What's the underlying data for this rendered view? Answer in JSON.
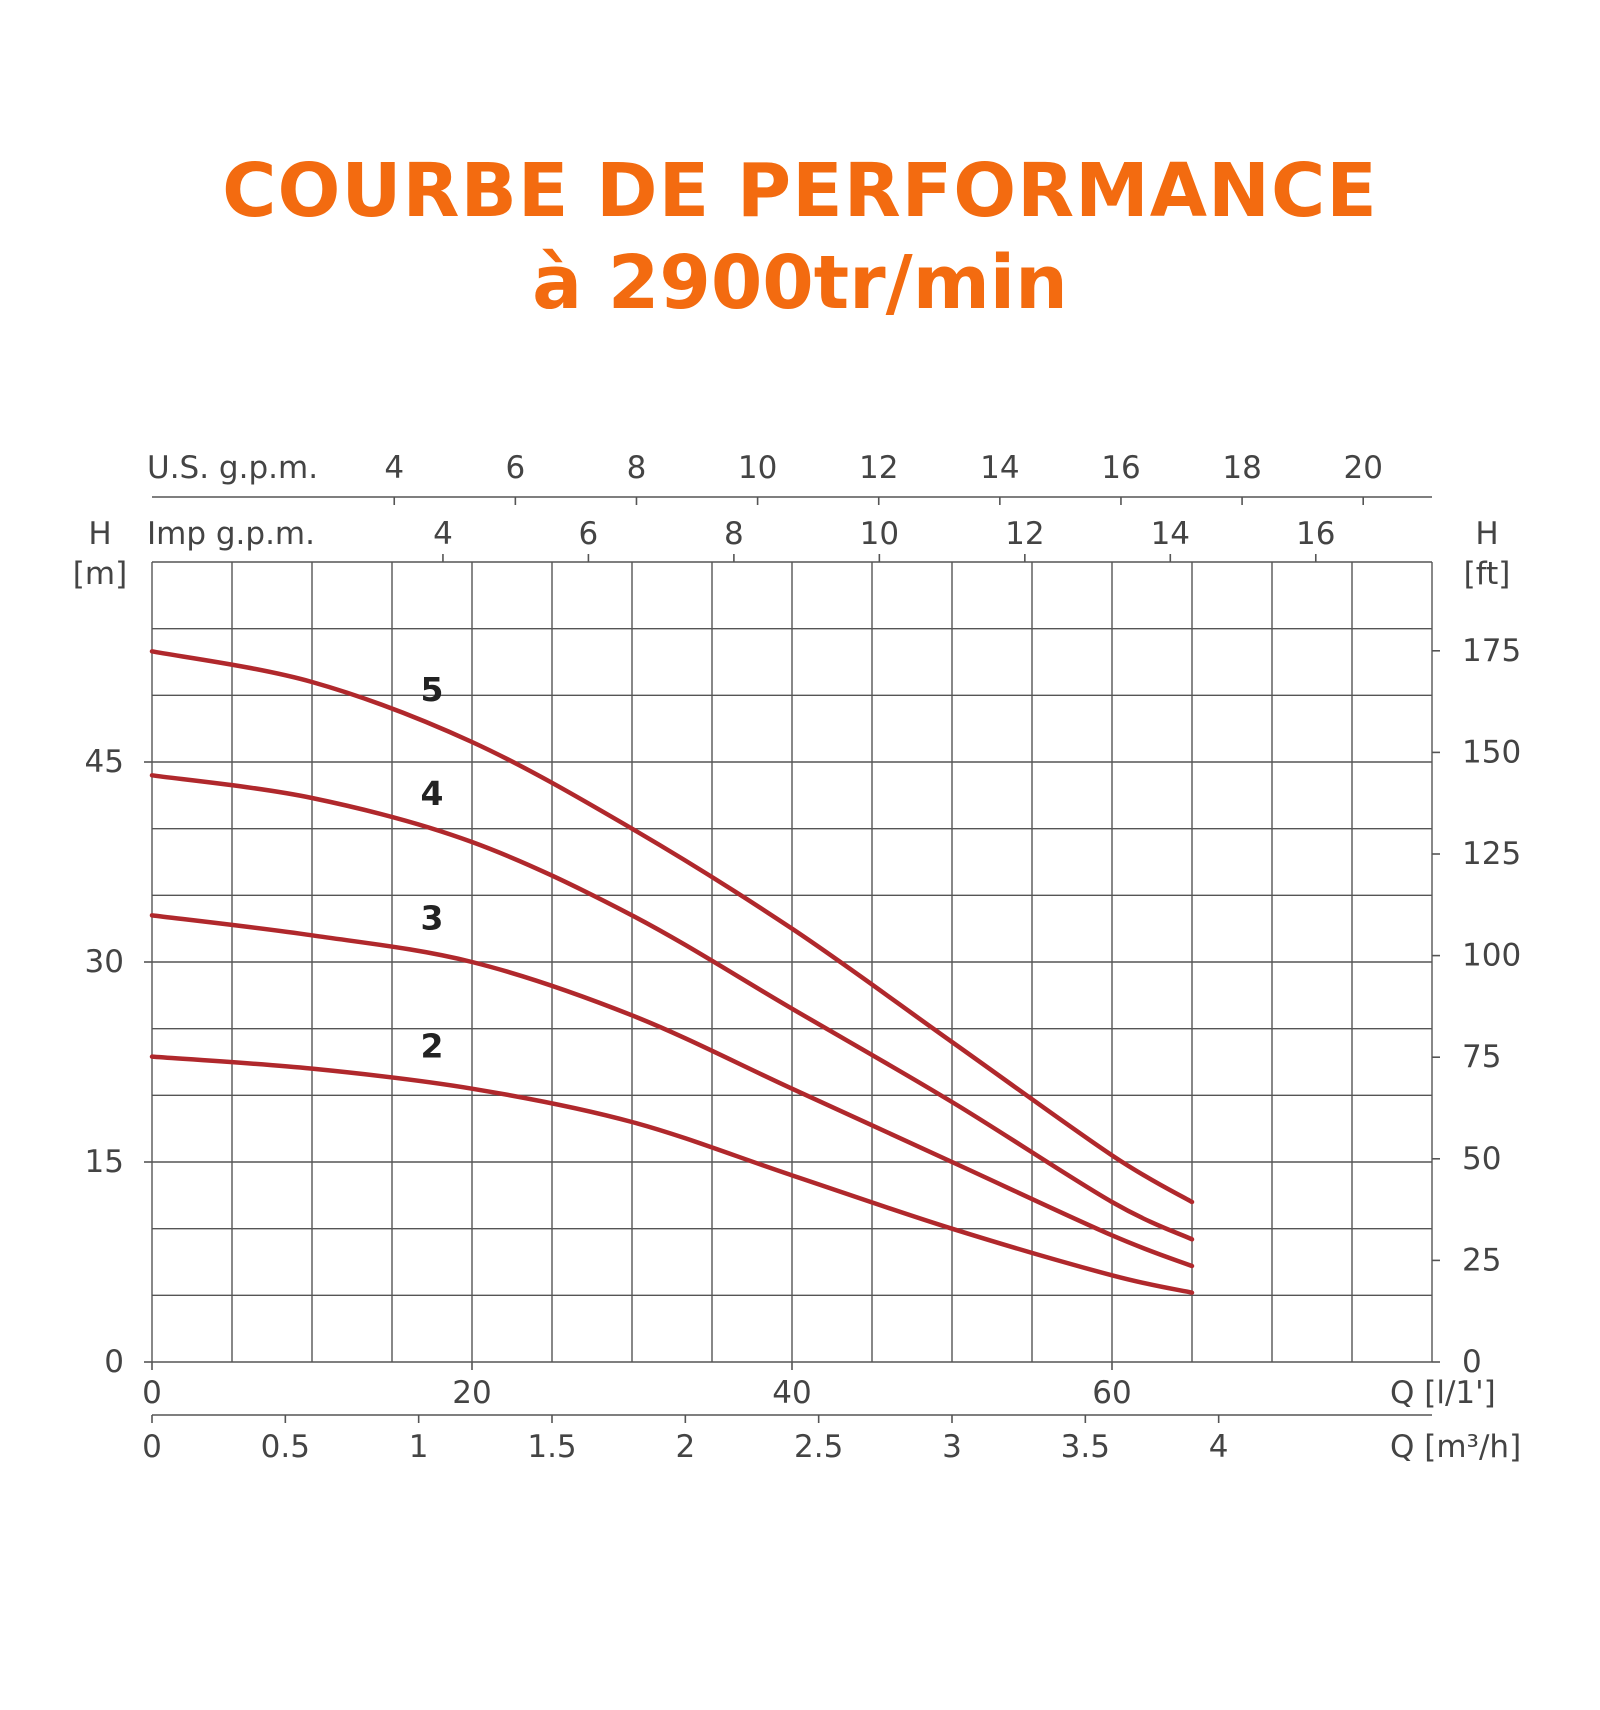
{
  "title": "COURBE DE PERFORMANCE",
  "subtitle": "à 2900tr/min",
  "chart_data": {
    "type": "line",
    "title": "COURBE DE PERFORMANCE",
    "subtitle": "à 2900tr/min",
    "xlabel": "Q [l/1']",
    "x2label": "Q [m³/h]",
    "ylabel_left": "H",
    "ylabel_left_unit": "[m]",
    "ylabel_right": "H",
    "ylabel_right_unit": "[ft]",
    "top_axis_1_label": "U.S. g.p.m.",
    "top_axis_2_label": "Imp g.p.m.",
    "xlim": [
      0,
      80
    ],
    "ylim": [
      0,
      60
    ],
    "grid": true,
    "x_ticks": [
      0,
      20,
      40,
      60
    ],
    "m3h_ticks": [
      "0",
      "0.5",
      "1",
      "1.5",
      "2",
      "2.5",
      "3",
      "3.5",
      "4"
    ],
    "us_gpm_ticks": [
      "4",
      "6",
      "8",
      "10",
      "12",
      "14",
      "16",
      "18",
      "20"
    ],
    "imp_gpm_ticks": [
      "4",
      "6",
      "8",
      "10",
      "12",
      "14",
      "16"
    ],
    "y_ticks": [
      "0",
      "15",
      "30",
      "45"
    ],
    "ft_ticks": [
      "0",
      "25",
      "50",
      "75",
      "100",
      "125",
      "150",
      "175"
    ],
    "series": [
      {
        "name": "2",
        "x": [
          0,
          10,
          20,
          30,
          40,
          50,
          60,
          65
        ],
        "y": [
          22.9,
          22,
          20.5,
          18,
          14,
          10,
          6.5,
          5.2
        ]
      },
      {
        "name": "3",
        "x": [
          0,
          10,
          20,
          30,
          40,
          50,
          60,
          65
        ],
        "y": [
          33.5,
          32,
          30,
          26,
          20.5,
          15,
          9.5,
          7.2
        ]
      },
      {
        "name": "4",
        "x": [
          0,
          10,
          20,
          30,
          40,
          50,
          60,
          65
        ],
        "y": [
          44,
          42.3,
          39,
          33.5,
          26.5,
          19.5,
          12,
          9.2
        ]
      },
      {
        "name": "5",
        "x": [
          0,
          10,
          20,
          30,
          40,
          50,
          60,
          65
        ],
        "y": [
          53.3,
          51,
          46.5,
          40,
          32.5,
          24,
          15.5,
          12
        ]
      }
    ],
    "line_color": "#b0282c"
  }
}
